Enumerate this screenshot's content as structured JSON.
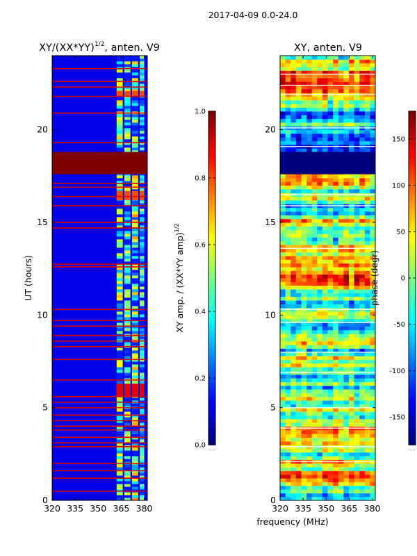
{
  "figure": {
    "suptitle": "2017-04-09 0.0-24.0",
    "xlabel_shared": "frequency (MHz)"
  },
  "colors": {
    "jet": [
      "#00007f",
      "#0000ff",
      "#007fff",
      "#00ffff",
      "#7fff7f",
      "#ffff00",
      "#ff7f00",
      "#ff0000",
      "#7f0000"
    ],
    "frame": "#000000"
  },
  "chart_data": [
    {
      "type": "heatmap",
      "title": "XY/(XX*YY)",
      "title_sup": "1/2",
      "title_suffix": ", anten. V9",
      "xlabel": "",
      "ylabel": "UT (hours)",
      "xlim": [
        320,
        382
      ],
      "ylim": [
        0,
        24
      ],
      "xticks": [
        320,
        335,
        350,
        365,
        380
      ],
      "yticks": [
        0,
        5,
        10,
        15,
        20
      ],
      "colorbar": {
        "label": "XY amp. / (XX*YY amp)",
        "label_sup": "1/2",
        "range": [
          0.0,
          1.0
        ],
        "ticks": [
          "0.0",
          "0.2",
          "0.4",
          "0.6",
          "0.8",
          "1.0"
        ],
        "tick_values": [
          0.0,
          0.2,
          0.4,
          0.6,
          0.8,
          1.0
        ],
        "note": "......"
      },
      "background_value": 0.1,
      "high_band": {
        "value": 1.0,
        "ut_range": [
          17.6,
          18.8
        ]
      },
      "rfi_rows_ut": [
        0.5,
        1.2,
        1.6,
        2.0,
        2.9,
        3.1,
        3.4,
        3.8,
        4.0,
        4.3,
        4.6,
        5.0,
        5.3,
        5.6,
        6.5,
        7.6,
        8.3,
        8.6,
        8.9,
        9.4,
        9.7,
        10.3,
        12.6,
        12.75,
        14.7,
        15.0,
        15.9,
        16.4,
        16.9,
        17.1,
        19.3,
        20.9,
        21.8,
        22.3,
        22.6,
        23.3
      ],
      "active_columns_mhz": [
        [
          362,
          366,
          0.55
        ],
        [
          367,
          371,
          0.5
        ],
        [
          372,
          376,
          0.6
        ],
        [
          377,
          380,
          0.45
        ]
      ],
      "hot_patches": [
        {
          "ut_range": [
            5.6,
            6.3
          ],
          "value": 0.9
        },
        {
          "ut_range": [
            16.2,
            16.7
          ],
          "value": 0.8
        },
        {
          "ut_range": [
            21.8,
            22.1
          ],
          "value": 0.8
        }
      ]
    },
    {
      "type": "heatmap",
      "title": "XY, anten. V9",
      "xlabel": "frequency (MHz)",
      "ylabel": "",
      "xlim": [
        320,
        382
      ],
      "ylim": [
        0,
        24
      ],
      "xticks": [
        320,
        335,
        350,
        365,
        380
      ],
      "yticks": [
        0,
        5,
        10,
        15,
        20
      ],
      "colorbar": {
        "label": "phase (degr)",
        "range": [
          -180,
          180
        ],
        "ticks": [
          "-150",
          "-100",
          "-50",
          "0",
          "50",
          "100",
          "150"
        ],
        "tick_values": [
          -150,
          -100,
          -50,
          0,
          50,
          100,
          150
        ],
        "note": "......"
      },
      "low_band": {
        "value": -180,
        "ut_range": [
          17.6,
          18.8
        ]
      },
      "white_rows_ut": [
        2.1,
        2.9,
        3.9,
        5.0,
        6.9,
        8.0,
        9.6,
        10.3,
        13.6,
        15.9,
        16.5,
        19.1,
        20.1,
        21.9,
        22.4,
        23.0
      ]
    }
  ]
}
